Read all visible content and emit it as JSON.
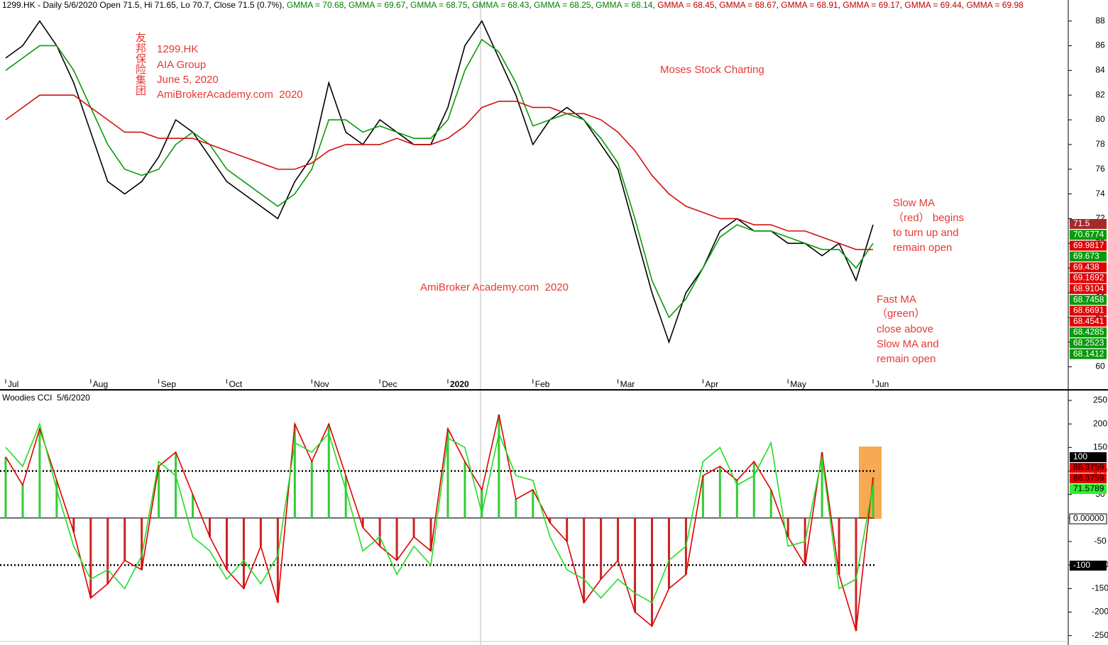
{
  "chart_data": [
    {
      "type": "line",
      "title": [
        {
          "text": "1299.HK - Daily 5/6/2020 Open 71.5, Hi 71.65, Lo 70.7, Close 71.5 (0.7%)",
          "color": "#000000"
        },
        {
          "text": "GMMA = 70.68",
          "color": "#008000"
        },
        {
          "text": "GMMA = 69.67",
          "color": "#008000"
        },
        {
          "text": "GMMA = 68.75",
          "color": "#008000"
        },
        {
          "text": "GMMA = 68.43",
          "color": "#008000"
        },
        {
          "text": "GMMA = 68.25",
          "color": "#008000"
        },
        {
          "text": "GMMA = 68.14",
          "color": "#008000"
        },
        {
          "text": "GMMA = 68.45",
          "color": "#c00000"
        },
        {
          "text": "GMMA = 68.67",
          "color": "#c00000"
        },
        {
          "text": "GMMA = 68.91",
          "color": "#c00000"
        },
        {
          "text": "GMMA = 69.17",
          "color": "#c00000"
        },
        {
          "text": "GMMA = 69.44",
          "color": "#c00000"
        },
        {
          "text": "GMMA = 69.98",
          "color": "#c00000"
        }
      ],
      "categories": [
        "Jul",
        null,
        null,
        null,
        null,
        "Aug",
        null,
        null,
        null,
        "Sep",
        null,
        null,
        null,
        "Oct",
        null,
        null,
        null,
        null,
        "Nov",
        null,
        null,
        null,
        "Dec",
        null,
        null,
        null,
        "2020",
        null,
        null,
        null,
        null,
        "Feb",
        null,
        null,
        null,
        null,
        "Mar",
        null,
        null,
        null,
        null,
        "Apr",
        null,
        null,
        null,
        null,
        "May",
        null,
        null,
        null,
        null,
        "Jun"
      ],
      "series": [
        {
          "color": "#000000",
          "values": [
            85,
            86,
            88,
            86,
            83,
            79,
            75,
            74,
            75,
            77,
            80,
            79,
            77,
            75,
            74,
            73,
            72,
            75,
            77,
            83,
            79,
            78,
            80,
            79,
            78,
            78,
            81,
            86,
            88,
            85,
            82,
            78,
            80,
            81,
            80,
            78,
            76,
            71,
            66,
            62,
            66,
            68,
            71,
            72,
            71,
            71,
            70,
            70,
            69,
            70,
            67,
            71.5
          ]
        },
        {
          "color": "#0a9a0a",
          "values": [
            84,
            85,
            86,
            86,
            84,
            81,
            78,
            76,
            75.5,
            76,
            78,
            79,
            78,
            76,
            75,
            74,
            73,
            74,
            76,
            80,
            80,
            79,
            79.5,
            79,
            78.5,
            78.5,
            80,
            84,
            86.5,
            85.5,
            83,
            79.5,
            80,
            80.5,
            80,
            78.5,
            76.5,
            72,
            67,
            64,
            65.5,
            68,
            70.5,
            71.5,
            71,
            71,
            70.5,
            70,
            69.5,
            69.5,
            68,
            70
          ]
        },
        {
          "color": "#d01010",
          "values": [
            80,
            81,
            82,
            82,
            82,
            81,
            80,
            79,
            79,
            78.5,
            78.5,
            78.5,
            78,
            77.5,
            77,
            76.5,
            76,
            76,
            76.5,
            77.5,
            78,
            78,
            78,
            78.5,
            78,
            78,
            78.5,
            79.5,
            81,
            81.5,
            81.5,
            81,
            81,
            80.5,
            80.5,
            80,
            79,
            77.5,
            75.5,
            74,
            73,
            72.5,
            72,
            72,
            71.5,
            71.5,
            71,
            71,
            70.5,
            70,
            69.5,
            69.5
          ]
        }
      ],
      "ylim": [
        59,
        89.7
      ],
      "yticks": [
        60,
        62,
        64,
        66,
        68,
        70,
        72,
        74,
        76,
        78,
        80,
        82,
        84,
        86,
        88
      ],
      "price_labels": [
        {
          "value": 71.5,
          "color": "#a52a2a"
        },
        {
          "value": 70.6774,
          "color": "#0a9a0a"
        },
        {
          "value": 69.9817,
          "color": "#e00000"
        },
        {
          "value": 69.673,
          "color": "#0a9a0a"
        },
        {
          "value": 69.438,
          "color": "#e00000"
        },
        {
          "value": 69.1692,
          "color": "#e00000"
        },
        {
          "value": 68.9104,
          "color": "#e00000"
        },
        {
          "value": 68.7458,
          "color": "#0a9a0a"
        },
        {
          "value": 68.6691,
          "color": "#e00000"
        },
        {
          "value": 68.4541,
          "color": "#e00000"
        },
        {
          "value": 68.4285,
          "color": "#0a9a0a"
        },
        {
          "value": 68.2523,
          "color": "#0a9a0a"
        },
        {
          "value": 68.1412,
          "color": "#0a9a0a"
        }
      ],
      "annotations": [
        "友邦保险集团",
        "1299.HK",
        "AIA Group",
        "June 5, 2020",
        "AmiBrokerAcademy.com  2020",
        "Moses Stock Charting",
        "AmiBroker Academy.com  2020",
        "Slow MA",
        "（red） begins",
        "to turn up and",
        "remain open",
        "Fast MA",
        "（green）",
        "close above",
        "Slow MA and",
        "remain open"
      ],
      "annotation_color": "#e53935"
    },
    {
      "type": "line",
      "title": "Woodies CCI  5/6/2020",
      "bars": true,
      "bar_colors": {
        "up": "#33cc33",
        "down": "#cc2222"
      },
      "series": [
        {
          "color": "#e00000",
          "values": [
            130,
            70,
            190,
            80,
            -30,
            -170,
            -140,
            -90,
            -110,
            110,
            140,
            50,
            -40,
            -110,
            -150,
            -60,
            -180,
            200,
            120,
            200,
            90,
            -20,
            -60,
            -90,
            -40,
            -70,
            190,
            120,
            60,
            220,
            40,
            60,
            -10,
            -50,
            -180,
            -130,
            -90,
            -200,
            -230,
            -150,
            -120,
            90,
            110,
            80,
            120,
            60,
            -40,
            -100,
            140,
            -120,
            -240,
            86.3759
          ]
        },
        {
          "color": "#22dd22",
          "values": [
            150,
            110,
            200,
            60,
            -60,
            -130,
            -110,
            -150,
            -80,
            120,
            90,
            -40,
            -70,
            -130,
            -90,
            -140,
            -80,
            160,
            140,
            180,
            60,
            -70,
            -40,
            -120,
            -60,
            -100,
            170,
            150,
            10,
            180,
            90,
            80,
            -40,
            -110,
            -130,
            -170,
            -130,
            -160,
            -180,
            -90,
            -60,
            120,
            150,
            70,
            90,
            160,
            -60,
            -50,
            130,
            -150,
            -130,
            71.5789
          ]
        }
      ],
      "ylim": [
        -270,
        268
      ],
      "yticks": [
        -250,
        -200,
        -150,
        -100,
        -50,
        0,
        50,
        100,
        150,
        200,
        250
      ],
      "hlines": [
        100,
        0,
        -100
      ],
      "cci_labels": [
        {
          "value": 100,
          "color": "#000000",
          "text_color": "#ffffff"
        },
        {
          "value": 86.3759,
          "color": "#e00000",
          "text_color": "#000000"
        },
        {
          "value": 86.3759,
          "color": "#e00000",
          "text_color": "#000000"
        },
        {
          "value": 71.5789,
          "color": "#33ee33",
          "text_color": "#000000"
        },
        {
          "value": {
            "value": 0,
            "label": "0.00000"
          },
          "color": "#ffffff",
          "text_color": "#000000"
        },
        {
          "value": -100,
          "color": "#000000",
          "text_color": "#ffffff"
        }
      ]
    }
  ]
}
